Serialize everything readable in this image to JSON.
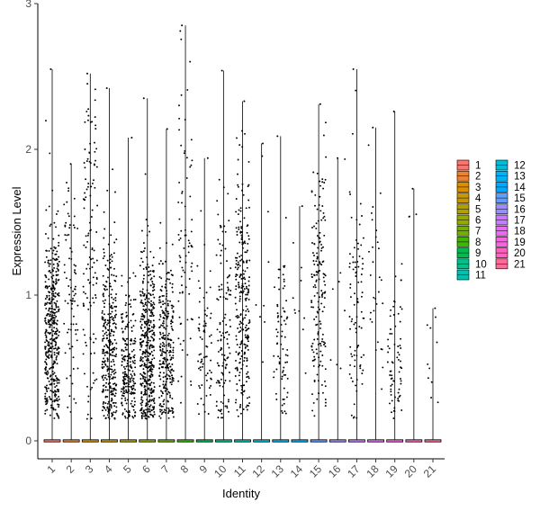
{
  "chart_data": {
    "type": "violin",
    "title": "",
    "xlabel": "Identity",
    "ylabel": "Expression Level",
    "ylim": [
      0,
      3
    ],
    "yticks": [
      "0",
      "1",
      "2",
      "3"
    ],
    "grid": false,
    "legend_position": "right",
    "categories": [
      "1",
      "2",
      "3",
      "4",
      "5",
      "6",
      "7",
      "8",
      "9",
      "10",
      "11",
      "12",
      "13",
      "14",
      "15",
      "16",
      "17",
      "18",
      "19",
      "20",
      "21"
    ],
    "colors": [
      "#F8766D",
      "#EA8331",
      "#DB8E00",
      "#C79800",
      "#B0A100",
      "#94AA00",
      "#72B000",
      "#3DB700",
      "#00BC50",
      "#00C08B",
      "#00C0AF",
      "#00BCD8",
      "#00B5F5",
      "#00A9FF",
      "#619CFF",
      "#9C8DFF",
      "#C77CFF",
      "#E76BF3",
      "#F863DF",
      "#FF62BC",
      "#FF6A98"
    ],
    "series": [
      {
        "name": "1",
        "max": 2.55,
        "n": 420,
        "mean": 0.75,
        "sd": 0.38
      },
      {
        "name": "2",
        "max": 1.9,
        "n": 80,
        "mean": 1.0,
        "sd": 0.45
      },
      {
        "name": "3",
        "max": 2.52,
        "n": 120,
        "mean": 1.3,
        "sd": 0.6
      },
      {
        "name": "4",
        "max": 2.42,
        "n": 330,
        "mean": 0.6,
        "sd": 0.4
      },
      {
        "name": "5",
        "max": 2.08,
        "n": 230,
        "mean": 0.45,
        "sd": 0.3
      },
      {
        "name": "6",
        "max": 2.35,
        "n": 420,
        "mean": 0.6,
        "sd": 0.35
      },
      {
        "name": "7",
        "max": 2.14,
        "n": 280,
        "mean": 0.6,
        "sd": 0.33
      },
      {
        "name": "8",
        "max": 2.85,
        "n": 80,
        "mean": 1.3,
        "sd": 0.6
      },
      {
        "name": "9",
        "max": 1.94,
        "n": 70,
        "mean": 0.6,
        "sd": 0.35
      },
      {
        "name": "10",
        "max": 2.54,
        "n": 120,
        "mean": 0.8,
        "sd": 0.45
      },
      {
        "name": "11",
        "max": 2.33,
        "n": 260,
        "mean": 0.95,
        "sd": 0.45
      },
      {
        "name": "12",
        "max": 2.04,
        "n": 8,
        "mean": 1.0,
        "sd": 0.4
      },
      {
        "name": "13",
        "max": 2.09,
        "n": 75,
        "mean": 0.65,
        "sd": 0.35
      },
      {
        "name": "14",
        "max": 1.61,
        "n": 10,
        "mean": 1.0,
        "sd": 0.35
      },
      {
        "name": "15",
        "max": 2.31,
        "n": 170,
        "mean": 1.0,
        "sd": 0.45
      },
      {
        "name": "16",
        "max": 1.94,
        "n": 8,
        "mean": 1.0,
        "sd": 0.4
      },
      {
        "name": "17",
        "max": 2.55,
        "n": 90,
        "mean": 0.8,
        "sd": 0.45
      },
      {
        "name": "18",
        "max": 2.15,
        "n": 30,
        "mean": 1.0,
        "sd": 0.5
      },
      {
        "name": "19",
        "max": 2.26,
        "n": 70,
        "mean": 0.6,
        "sd": 0.3
      },
      {
        "name": "20",
        "max": 1.73,
        "n": 3,
        "mean": 1.5,
        "sd": 0.2
      },
      {
        "name": "21",
        "max": 0.91,
        "n": 10,
        "mean": 0.6,
        "sd": 0.25
      }
    ],
    "legend_entries": [
      "1",
      "2",
      "3",
      "4",
      "5",
      "6",
      "7",
      "8",
      "9",
      "10",
      "11",
      "12",
      "13",
      "14",
      "15",
      "16",
      "17",
      "18",
      "19",
      "20",
      "21"
    ]
  }
}
